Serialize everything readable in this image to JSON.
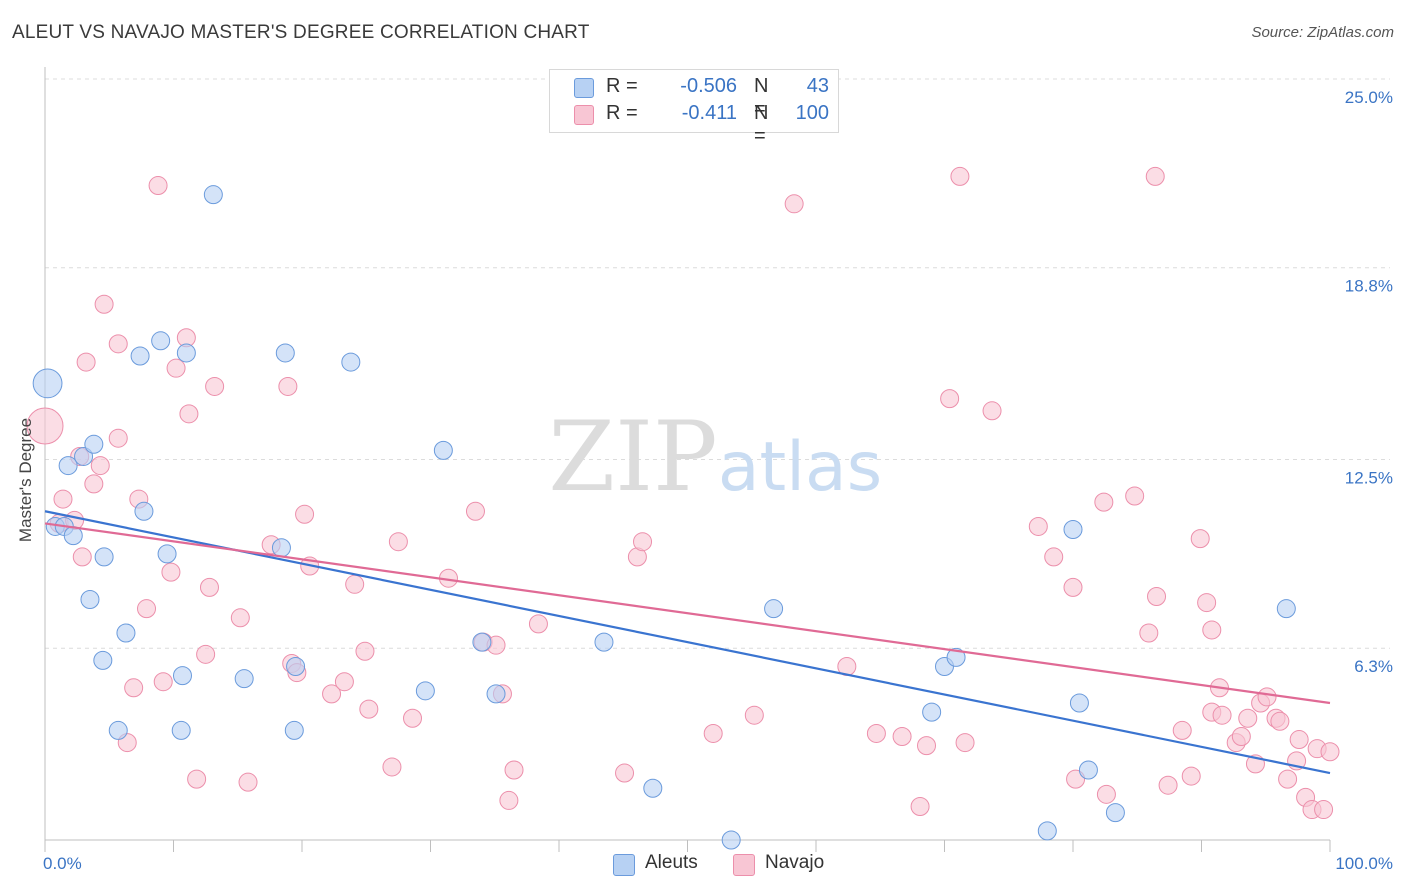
{
  "title": "ALEUT VS NAVAJO MASTER'S DEGREE CORRELATION CHART",
  "source": "Source: ZipAtlas.com",
  "watermark": {
    "zip": "ZIP",
    "atlas": "atlas"
  },
  "legend": {
    "rows": [
      {
        "r_label": "R =",
        "r_value": "-0.506",
        "n_label": "N =",
        "n_value": "43"
      },
      {
        "r_label": "R =",
        "r_value": "-0.411",
        "n_label": "N =",
        "n_value": "100"
      }
    ]
  },
  "colors": {
    "aleut_fill": "#b7d1f3",
    "aleut_stroke": "#6b9bdc",
    "aleut_line": "#3a74d0",
    "navajo_fill": "#f8c6d4",
    "navajo_stroke": "#ec8fab",
    "navajo_line": "#e06a95",
    "tick_label": "#3a74c4"
  },
  "chart_data": {
    "type": "scatter",
    "title": "ALEUT VS NAVAJO MASTER'S DEGREE CORRELATION CHART",
    "xlabel": "",
    "ylabel": "Master's Degree",
    "xlim": [
      0,
      100
    ],
    "ylim": [
      0,
      25
    ],
    "x_tick_labels": [
      "0.0%",
      "100.0%"
    ],
    "y_ticks": [
      6.3,
      12.5,
      18.8,
      25.0
    ],
    "y_tick_labels": [
      "6.3%",
      "12.5%",
      "18.8%",
      "25.0%"
    ],
    "grid": true,
    "legend_position": "top-center",
    "series": [
      {
        "name": "Aleuts",
        "r": -0.506,
        "n": 43,
        "trend": {
          "x": [
            0,
            100
          ],
          "y": [
            10.8,
            2.2
          ]
        },
        "points": [
          [
            0.2,
            15.0,
            1.6
          ],
          [
            0.8,
            10.3,
            1
          ],
          [
            1.5,
            10.3,
            1
          ],
          [
            1.8,
            12.3,
            1
          ],
          [
            2.2,
            10.0,
            1
          ],
          [
            3.0,
            12.6,
            1
          ],
          [
            3.8,
            13.0,
            1
          ],
          [
            4.6,
            9.3,
            1
          ],
          [
            3.5,
            7.9,
            1
          ],
          [
            4.5,
            5.9,
            1
          ],
          [
            5.7,
            3.6,
            1
          ],
          [
            6.3,
            6.8,
            1
          ],
          [
            7.4,
            15.9,
            1
          ],
          [
            7.7,
            10.8,
            1
          ],
          [
            9.0,
            16.4,
            1
          ],
          [
            9.5,
            9.4,
            1
          ],
          [
            10.6,
            3.6,
            1
          ],
          [
            10.7,
            5.4,
            1
          ],
          [
            11.0,
            16.0,
            1
          ],
          [
            13.1,
            21.2,
            1
          ],
          [
            15.5,
            5.3,
            1
          ],
          [
            18.7,
            16.0,
            1
          ],
          [
            18.4,
            9.6,
            1
          ],
          [
            19.4,
            3.6,
            1
          ],
          [
            19.5,
            5.7,
            1
          ],
          [
            23.8,
            15.7,
            1
          ],
          [
            29.6,
            4.9,
            1
          ],
          [
            31.0,
            12.8,
            1
          ],
          [
            34.0,
            6.5,
            1
          ],
          [
            35.1,
            4.8,
            1
          ],
          [
            43.5,
            6.5,
            1
          ],
          [
            47.3,
            1.7,
            1
          ],
          [
            53.4,
            0.0,
            1
          ],
          [
            56.7,
            7.6,
            1
          ],
          [
            69.0,
            4.2,
            1
          ],
          [
            70.0,
            5.7,
            1
          ],
          [
            70.9,
            6.0,
            1
          ],
          [
            78.0,
            0.3,
            1
          ],
          [
            80.0,
            10.2,
            1
          ],
          [
            80.5,
            4.5,
            1
          ],
          [
            81.2,
            2.3,
            1
          ],
          [
            83.3,
            0.9,
            1
          ],
          [
            96.6,
            7.6,
            1
          ]
        ]
      },
      {
        "name": "Navajo",
        "r": -0.411,
        "n": 100,
        "trend": {
          "x": [
            0,
            100
          ],
          "y": [
            10.4,
            4.5
          ]
        },
        "points": [
          [
            0.0,
            13.6,
            2
          ],
          [
            1.1,
            10.4,
            1
          ],
          [
            1.4,
            11.2,
            1
          ],
          [
            2.3,
            10.5,
            1
          ],
          [
            2.7,
            12.6,
            1
          ],
          [
            2.9,
            9.3,
            1
          ],
          [
            3.2,
            15.7,
            1
          ],
          [
            3.8,
            11.7,
            1
          ],
          [
            4.3,
            12.3,
            1
          ],
          [
            4.6,
            17.6,
            1
          ],
          [
            5.7,
            13.2,
            1
          ],
          [
            5.7,
            16.3,
            1
          ],
          [
            6.4,
            3.2,
            1
          ],
          [
            6.9,
            5.0,
            1
          ],
          [
            7.3,
            11.2,
            1
          ],
          [
            7.9,
            7.6,
            1
          ],
          [
            8.8,
            21.5,
            1
          ],
          [
            9.2,
            5.2,
            1
          ],
          [
            9.8,
            8.8,
            1
          ],
          [
            10.2,
            15.5,
            1
          ],
          [
            11.0,
            16.5,
            1
          ],
          [
            11.2,
            14.0,
            1
          ],
          [
            11.8,
            2.0,
            1
          ],
          [
            12.5,
            6.1,
            1
          ],
          [
            12.8,
            8.3,
            1
          ],
          [
            13.2,
            14.9,
            1
          ],
          [
            15.2,
            7.3,
            1
          ],
          [
            15.8,
            1.9,
            1
          ],
          [
            17.6,
            9.7,
            1
          ],
          [
            18.9,
            14.9,
            1
          ],
          [
            19.2,
            5.8,
            1
          ],
          [
            19.6,
            5.5,
            1
          ],
          [
            20.2,
            10.7,
            1
          ],
          [
            20.6,
            9.0,
            1
          ],
          [
            22.3,
            4.8,
            1
          ],
          [
            23.3,
            5.2,
            1
          ],
          [
            24.1,
            8.4,
            1
          ],
          [
            24.9,
            6.2,
            1
          ],
          [
            25.2,
            4.3,
            1
          ],
          [
            27.0,
            2.4,
            1
          ],
          [
            27.5,
            9.8,
            1
          ],
          [
            28.6,
            4.0,
            1
          ],
          [
            31.4,
            8.6,
            1
          ],
          [
            33.5,
            10.8,
            1
          ],
          [
            34.1,
            6.5,
            1
          ],
          [
            35.1,
            6.4,
            1
          ],
          [
            35.6,
            4.8,
            1
          ],
          [
            36.1,
            1.3,
            1
          ],
          [
            36.5,
            2.3,
            1
          ],
          [
            38.4,
            7.1,
            1
          ],
          [
            45.1,
            2.2,
            1
          ],
          [
            46.1,
            9.3,
            1
          ],
          [
            46.5,
            9.8,
            1
          ],
          [
            52.0,
            3.5,
            1
          ],
          [
            55.2,
            4.1,
            1
          ],
          [
            58.3,
            20.9,
            1
          ],
          [
            62.4,
            5.7,
            1
          ],
          [
            64.7,
            3.5,
            1
          ],
          [
            66.7,
            3.4,
            1
          ],
          [
            68.1,
            1.1,
            1
          ],
          [
            68.6,
            3.1,
            1
          ],
          [
            70.4,
            14.5,
            1
          ],
          [
            71.2,
            21.8,
            1
          ],
          [
            71.6,
            3.2,
            1
          ],
          [
            73.7,
            14.1,
            1
          ],
          [
            77.3,
            10.3,
            1
          ],
          [
            78.5,
            9.3,
            1
          ],
          [
            80.0,
            8.3,
            1
          ],
          [
            80.2,
            2.0,
            1
          ],
          [
            82.4,
            11.1,
            1
          ],
          [
            82.6,
            1.5,
            1
          ],
          [
            84.8,
            11.3,
            1
          ],
          [
            85.9,
            6.8,
            1
          ],
          [
            86.5,
            8.0,
            1
          ],
          [
            86.4,
            21.8,
            1
          ],
          [
            87.4,
            1.8,
            1
          ],
          [
            88.5,
            3.6,
            1
          ],
          [
            89.2,
            2.1,
            1
          ],
          [
            89.9,
            9.9,
            1
          ],
          [
            90.4,
            7.8,
            1
          ],
          [
            90.8,
            6.9,
            1
          ],
          [
            90.8,
            4.2,
            1
          ],
          [
            91.4,
            5.0,
            1
          ],
          [
            91.6,
            4.1,
            1
          ],
          [
            92.7,
            3.2,
            1
          ],
          [
            93.1,
            3.4,
            1
          ],
          [
            93.6,
            4.0,
            1
          ],
          [
            94.2,
            2.5,
            1
          ],
          [
            94.6,
            4.5,
            1
          ],
          [
            95.1,
            4.7,
            1
          ],
          [
            95.8,
            4.0,
            1
          ],
          [
            96.1,
            3.9,
            1
          ],
          [
            96.7,
            2.0,
            1
          ],
          [
            97.4,
            2.6,
            1
          ],
          [
            97.6,
            3.3,
            1
          ],
          [
            98.1,
            1.4,
            1
          ],
          [
            98.6,
            1.0,
            1
          ],
          [
            99.0,
            3.0,
            1
          ],
          [
            99.5,
            1.0,
            1
          ],
          [
            100.0,
            2.9,
            1
          ]
        ]
      }
    ]
  }
}
